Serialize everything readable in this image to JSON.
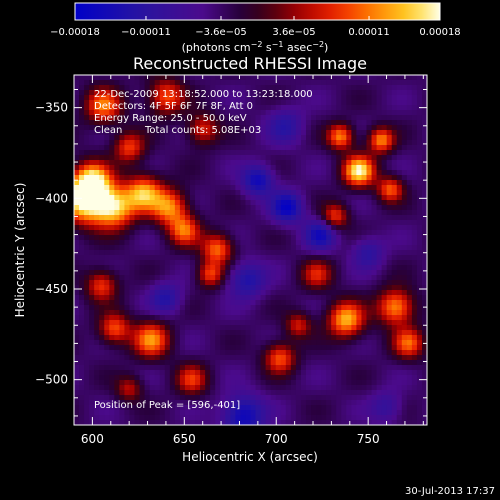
{
  "colorbar": {
    "ticks": [
      {
        "label": "−0.00018",
        "value": -0.00018
      },
      {
        "label": "−0.00011",
        "value": -0.00011
      },
      {
        "label": "−3.6e−05",
        "value": -3.6e-05
      },
      {
        "label": "3.6e−05",
        "value": 3.6e-05
      },
      {
        "label": "0.00011",
        "value": 0.00011
      },
      {
        "label": "0.00018",
        "value": 0.00018
      }
    ],
    "range": [
      -0.00018,
      0.00018
    ],
    "units_main": "(photons cm",
    "units_exp1": "−2",
    "units_mid": " s",
    "units_exp2": "−1",
    "units_end": " asec",
    "units_exp3": "−2",
    "units_close": ")"
  },
  "chart_data": {
    "type": "heatmap",
    "title": "Reconstructed RHESSI Image",
    "xlabel": "Heliocentric X (arcsec)",
    "ylabel": "Heliocentric Y (arcsec)",
    "xlim": [
      590,
      782
    ],
    "ylim": [
      -525,
      -332
    ],
    "xticks": [
      600,
      650,
      700,
      750
    ],
    "yticks": [
      -350,
      -400,
      -450,
      -500
    ],
    "peak_position": [
      596,
      -401
    ],
    "blobs": [
      {
        "x": 596,
        "y": -401,
        "sigma": 9,
        "amp": 1.0
      },
      {
        "x": 600,
        "y": -390,
        "sigma": 7,
        "amp": 0.8
      },
      {
        "x": 612,
        "y": -405,
        "sigma": 8,
        "amp": 0.85
      },
      {
        "x": 628,
        "y": -397,
        "sigma": 7,
        "amp": 0.75
      },
      {
        "x": 642,
        "y": -405,
        "sigma": 7,
        "amp": 0.7
      },
      {
        "x": 650,
        "y": -418,
        "sigma": 6,
        "amp": 0.6
      },
      {
        "x": 668,
        "y": -428,
        "sigma": 6,
        "amp": 0.65
      },
      {
        "x": 664,
        "y": -442,
        "sigma": 5,
        "amp": 0.55
      },
      {
        "x": 606,
        "y": -349,
        "sigma": 7,
        "amp": 0.65
      },
      {
        "x": 640,
        "y": -344,
        "sigma": 7,
        "amp": 0.6
      },
      {
        "x": 660,
        "y": -362,
        "sigma": 6,
        "amp": 0.5
      },
      {
        "x": 620,
        "y": -372,
        "sigma": 6,
        "amp": 0.55
      },
      {
        "x": 745,
        "y": -385,
        "sigma": 6,
        "amp": 0.95
      },
      {
        "x": 735,
        "y": -366,
        "sigma": 5,
        "amp": 0.7
      },
      {
        "x": 757,
        "y": -368,
        "sigma": 5,
        "amp": 0.7
      },
      {
        "x": 762,
        "y": -395,
        "sigma": 5,
        "amp": 0.6
      },
      {
        "x": 732,
        "y": -410,
        "sigma": 5,
        "amp": 0.55
      },
      {
        "x": 722,
        "y": -442,
        "sigma": 6,
        "amp": 0.45
      },
      {
        "x": 738,
        "y": -467,
        "sigma": 7,
        "amp": 0.8
      },
      {
        "x": 765,
        "y": -460,
        "sigma": 7,
        "amp": 0.75
      },
      {
        "x": 772,
        "y": -480,
        "sigma": 6,
        "amp": 0.6
      },
      {
        "x": 702,
        "y": -488,
        "sigma": 6,
        "amp": 0.6
      },
      {
        "x": 712,
        "y": -470,
        "sigma": 5,
        "amp": 0.45
      },
      {
        "x": 632,
        "y": -478,
        "sigma": 7,
        "amp": 0.7
      },
      {
        "x": 612,
        "y": -472,
        "sigma": 6,
        "amp": 0.6
      },
      {
        "x": 605,
        "y": -448,
        "sigma": 6,
        "amp": 0.55
      },
      {
        "x": 654,
        "y": -500,
        "sigma": 6,
        "amp": 0.5
      },
      {
        "x": 620,
        "y": -505,
        "sigma": 5,
        "amp": 0.4
      },
      {
        "x": 690,
        "y": -390,
        "sigma": 6,
        "amp": -0.55
      },
      {
        "x": 706,
        "y": -405,
        "sigma": 6,
        "amp": -0.6
      },
      {
        "x": 724,
        "y": -420,
        "sigma": 6,
        "amp": -0.5
      },
      {
        "x": 684,
        "y": -445,
        "sigma": 7,
        "amp": -0.45
      },
      {
        "x": 640,
        "y": -455,
        "sigma": 6,
        "amp": -0.4
      },
      {
        "x": 682,
        "y": -520,
        "sigma": 8,
        "amp": -0.6
      },
      {
        "x": 705,
        "y": -360,
        "sigma": 7,
        "amp": -0.35
      },
      {
        "x": 750,
        "y": -430,
        "sigma": 6,
        "amp": -0.35
      },
      {
        "x": 760,
        "y": -515,
        "sigma": 6,
        "amp": -0.3
      }
    ]
  },
  "info": {
    "time_range": "22-Dec-2009 13:18:52.000 to 13:23:18.000",
    "detectors": "Detectors: 4F 5F 6F 7F 8F, Att 0",
    "energy": "Energy Range: 25.0 - 50.0 keV",
    "method": "Clean",
    "counts": "Total counts: 5.08E+03",
    "peak_label": "Position of Peak = [596,-401]"
  },
  "footer": {
    "timestamp": "30-Jul-2013 17:37"
  }
}
